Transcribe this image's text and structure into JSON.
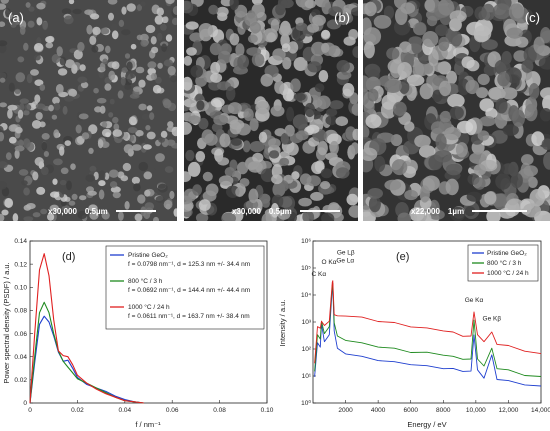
{
  "sem_panels": [
    {
      "letter": "(a)",
      "magnification": "x30,000",
      "scale": "0.5µm"
    },
    {
      "letter": "(b)",
      "magnification": "x30,000",
      "scale": "0.5µm"
    },
    {
      "letter": "(c)",
      "magnification": "x22,000",
      "scale": "1µm"
    }
  ],
  "chart_data": [
    {
      "type": "line",
      "panel": "(d)",
      "xlabel": "f / nm⁻¹",
      "ylabel": "Power spectral density (PSDF) / a.u.",
      "xlim": [
        0,
        0.1
      ],
      "ylim": [
        0,
        0.14
      ],
      "xticks": [
        "0",
        "0.02",
        "0.04",
        "0.06",
        "0.08",
        "0.10"
      ],
      "yticks": [
        "0",
        "0.02",
        "0.04",
        "0.06",
        "0.08",
        "0.10",
        "0.12",
        "0.14"
      ],
      "grid": false,
      "legend_position": "top-right",
      "legend": [
        {
          "line1": "Pristine GeO₂",
          "line2": "f = 0.0798 nm⁻¹, d = 125.3 nm +/- 34.4 nm"
        },
        {
          "line1": "800 °C / 3 h",
          "line2": "f = 0.0692 nm⁻¹, d = 144.4 nm +/- 44.4 nm"
        },
        {
          "line1": "1000 °C / 24 h",
          "line2": "f = 0.0611 nm⁻¹, d = 163.7 nm +/- 38.4 nm"
        }
      ],
      "series": [
        {
          "color": "#1f3fcf",
          "x": [
            0,
            0.002,
            0.004,
            0.006,
            0.008,
            0.01,
            0.012,
            0.014,
            0.016,
            0.018,
            0.02,
            0.024,
            0.028,
            0.032,
            0.036,
            0.04,
            0.044,
            0.048
          ],
          "y": [
            0,
            0.035,
            0.068,
            0.075,
            0.07,
            0.058,
            0.044,
            0.036,
            0.037,
            0.03,
            0.022,
            0.016,
            0.013,
            0.01,
            0.006,
            0.003,
            0.001,
            0
          ]
        },
        {
          "color": "#1e8a1e",
          "x": [
            0,
            0.002,
            0.004,
            0.006,
            0.008,
            0.01,
            0.012,
            0.014,
            0.016,
            0.018,
            0.02,
            0.024,
            0.028,
            0.032,
            0.036,
            0.04,
            0.044,
            0.048
          ],
          "y": [
            0,
            0.04,
            0.078,
            0.087,
            0.078,
            0.06,
            0.045,
            0.036,
            0.031,
            0.026,
            0.021,
            0.017,
            0.013,
            0.009,
            0.005,
            0.002,
            0.001,
            0
          ]
        },
        {
          "color": "#e02020",
          "x": [
            0,
            0.002,
            0.004,
            0.006,
            0.008,
            0.01,
            0.012,
            0.014,
            0.016,
            0.018,
            0.02,
            0.024,
            0.028,
            0.032,
            0.036,
            0.04,
            0.044,
            0.048
          ],
          "y": [
            0,
            0.06,
            0.115,
            0.129,
            0.11,
            0.072,
            0.045,
            0.041,
            0.04,
            0.033,
            0.024,
            0.017,
            0.012,
            0.008,
            0.005,
            0.002,
            0.001,
            0
          ]
        }
      ]
    },
    {
      "type": "line",
      "panel": "(e)",
      "xlabel": "Energy / eV",
      "ylabel": "Intensity / a.u.",
      "xlim": [
        0,
        14000
      ],
      "yscale": "log",
      "ylim_exponents": [
        0,
        6
      ],
      "xticks": [
        "2000",
        "4000",
        "6000",
        "8000",
        "10,000",
        "12,000",
        "14,000"
      ],
      "yticks": [
        "10⁰",
        "10¹",
        "10²",
        "10³",
        "10⁴",
        "10⁵",
        "10⁶"
      ],
      "grid": false,
      "legend_position": "top-right",
      "legend": [
        "Pristine GeO₂",
        "800 °C / 3 h",
        "1000 °C / 24 h"
      ],
      "annotations": [
        "C Kα",
        "O Kα",
        "Ge Lβ",
        "Ge Lα",
        "Ge Kα",
        "Ge Kβ"
      ],
      "series": [
        {
          "color": "#1f3fcf",
          "x": [
            100,
            277,
            450,
            525,
            700,
            1000,
            1188,
            1218,
            1300,
            1500,
            2000,
            3000,
            4000,
            5000,
            6000,
            7000,
            8000,
            8600,
            9200,
            9700,
            9886,
            10100,
            10500,
            10980,
            11300,
            12000,
            13000,
            14000
          ],
          "y": [
            1.0,
            2.2,
            2.1,
            2.9,
            2.3,
            2.5,
            4.3,
            4.3,
            2.7,
            2.0,
            1.85,
            1.7,
            1.6,
            1.5,
            1.45,
            1.35,
            1.3,
            1.25,
            1.2,
            1.15,
            2.55,
            1.2,
            0.95,
            1.75,
            0.9,
            0.8,
            0.7,
            0.6
          ]
        },
        {
          "color": "#1e8a1e",
          "x": [
            100,
            277,
            450,
            525,
            700,
            1000,
            1188,
            1218,
            1300,
            1500,
            2000,
            3000,
            4000,
            5000,
            6000,
            7000,
            8000,
            8600,
            9200,
            9700,
            9886,
            10100,
            10500,
            10980,
            11300,
            12000,
            13000,
            14000
          ],
          "y": [
            1.2,
            2.5,
            2.4,
            3.0,
            2.6,
            2.8,
            4.4,
            4.4,
            3.0,
            2.45,
            2.35,
            2.2,
            2.1,
            2.0,
            1.9,
            1.85,
            1.8,
            1.7,
            1.65,
            1.6,
            3.1,
            1.6,
            1.4,
            2.0,
            1.3,
            1.2,
            1.05,
            0.95
          ]
        },
        {
          "color": "#e02020",
          "x": [
            100,
            277,
            450,
            525,
            700,
            1000,
            1188,
            1218,
            1300,
            1500,
            2000,
            3000,
            4000,
            5000,
            6000,
            7000,
            8000,
            8600,
            9200,
            9700,
            9886,
            10100,
            10500,
            10980,
            11300,
            12000,
            13000,
            14000
          ],
          "y": [
            1.5,
            2.8,
            2.8,
            3.0,
            2.9,
            3.0,
            4.5,
            4.5,
            3.3,
            3.2,
            3.25,
            3.15,
            3.05,
            2.95,
            2.85,
            2.75,
            2.7,
            2.6,
            2.5,
            2.45,
            3.4,
            2.5,
            2.3,
            2.6,
            2.2,
            2.1,
            1.95,
            1.8
          ]
        }
      ]
    }
  ]
}
